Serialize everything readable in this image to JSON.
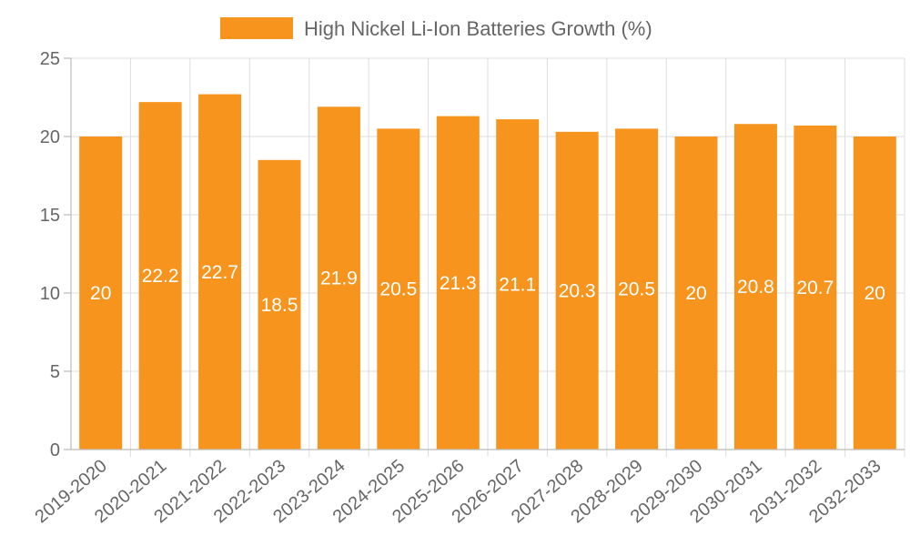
{
  "chart_data": {
    "type": "bar",
    "title": "",
    "xlabel": "",
    "ylabel": "",
    "legend": {
      "position": "top-center",
      "entries": [
        "High Nickel Li-Ion Batteries Growth (%)"
      ]
    },
    "categories": [
      "2019-2020",
      "2020-2021",
      "2021-2022",
      "2022-2023",
      "2023-2024",
      "2024-2025",
      "2025-2026",
      "2026-2027",
      "2027-2028",
      "2028-2029",
      "2029-2030",
      "2030-2031",
      "2031-2032",
      "2032-2033"
    ],
    "series": [
      {
        "name": "High Nickel Li-Ion Batteries Growth (%)",
        "values": [
          20,
          22.2,
          22.7,
          18.5,
          21.9,
          20.5,
          21.3,
          21.1,
          20.3,
          20.5,
          20,
          20.8,
          20.7,
          20
        ],
        "labels": [
          "20",
          "22.2",
          "22.7",
          "18.5",
          "21.9",
          "20.5",
          "21.3",
          "21.1",
          "20.3",
          "20.5",
          "20",
          "20.8",
          "20.7",
          "20"
        ],
        "color": "#f7941d"
      }
    ],
    "ylim": [
      0,
      25
    ],
    "yticks": [
      0,
      5,
      10,
      15,
      20,
      25
    ],
    "ytick_labels": [
      "0",
      "5",
      "10",
      "15",
      "20",
      "25"
    ],
    "grid": true
  }
}
